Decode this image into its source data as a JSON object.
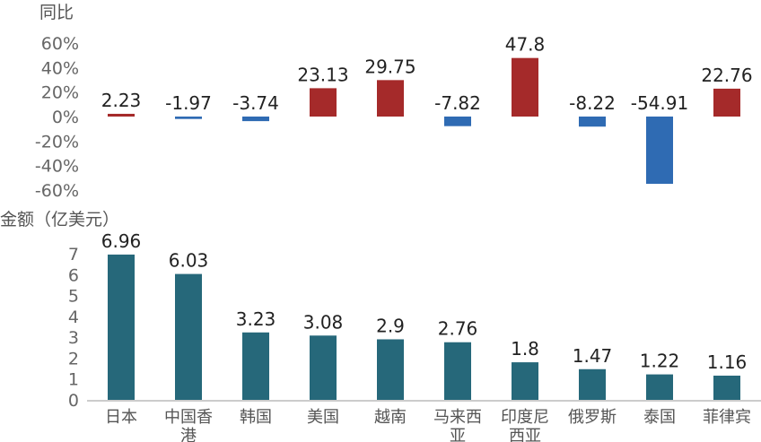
{
  "chart_data": [
    {
      "type": "bar",
      "ylabel": "同比",
      "categories": [
        "日本",
        "中国香港",
        "韩国",
        "美国",
        "越南",
        "马来西亚",
        "印度尼西亚",
        "俄罗斯",
        "泰国",
        "菲律宾"
      ],
      "values": [
        2.23,
        -1.97,
        -3.74,
        23.13,
        29.75,
        -7.82,
        47.8,
        -8.22,
        -54.91,
        22.76
      ],
      "value_labels": [
        "2.23",
        "-1.97",
        "-3.74",
        "23.13",
        "29.75",
        "-7.82",
        "47.8",
        "-8.22",
        "-54.91",
        "22.76"
      ],
      "ylim": [
        -60,
        60
      ],
      "yticks": [
        60,
        40,
        20,
        0,
        -20,
        -40,
        -60
      ],
      "ytick_labels": [
        "60%",
        "40%",
        "20%",
        "0%",
        "-20%",
        "-40%",
        "-60%"
      ],
      "positive_color": "#A52A2A",
      "negative_color": "#2F6BB3",
      "grid": false
    },
    {
      "type": "bar",
      "ylabel": "金额（亿美元）",
      "categories": [
        "日本",
        "中国香港",
        "韩国",
        "美国",
        "越南",
        "马来西亚",
        "印度尼西亚",
        "俄罗斯",
        "泰国",
        "菲律宾"
      ],
      "category_labels": [
        [
          "日本"
        ],
        [
          "中国香",
          "港"
        ],
        [
          "韩国"
        ],
        [
          "美国"
        ],
        [
          "越南"
        ],
        [
          "马来西",
          "亚"
        ],
        [
          "印度尼",
          "西亚"
        ],
        [
          "俄罗斯"
        ],
        [
          "泰国"
        ],
        [
          "菲律宾"
        ]
      ],
      "values": [
        6.96,
        6.03,
        3.23,
        3.08,
        2.9,
        2.76,
        1.8,
        1.47,
        1.22,
        1.16
      ],
      "value_labels": [
        "6.96",
        "6.03",
        "3.23",
        "3.08",
        "2.9",
        "2.76",
        "1.8",
        "1.47",
        "1.22",
        "1.16"
      ],
      "ylim": [
        0,
        7
      ],
      "yticks": [
        7,
        6,
        5,
        4,
        3,
        2,
        1,
        0
      ],
      "ytick_labels": [
        "7",
        "6",
        "5",
        "4",
        "3",
        "2",
        "1",
        "0"
      ],
      "bar_color": "#26687A",
      "grid": false
    }
  ]
}
